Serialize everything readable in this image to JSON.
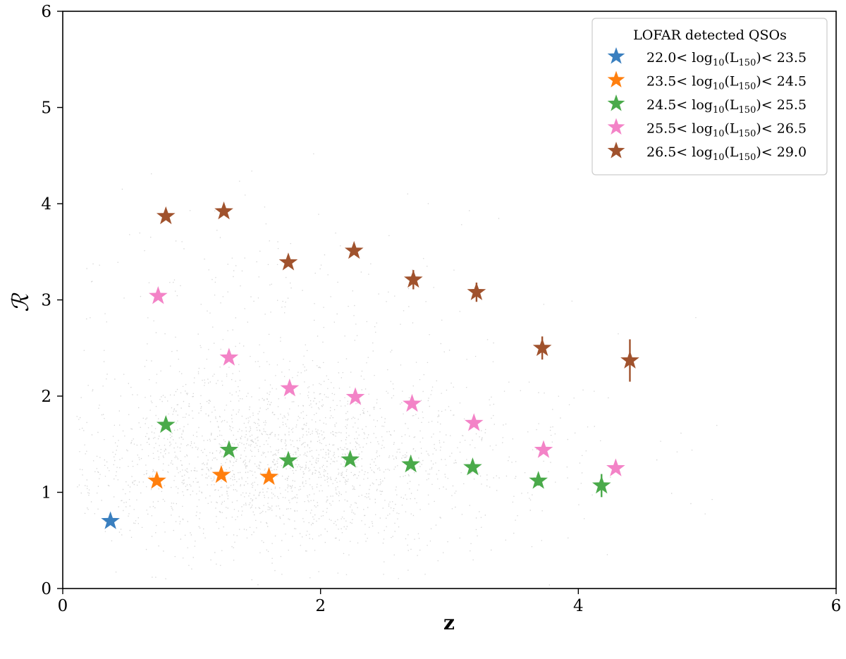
{
  "chart_data": {
    "type": "scatter",
    "xlabel": "z",
    "ylabel": "ℛ",
    "xlim": [
      0,
      6
    ],
    "ylim": [
      0,
      6
    ],
    "xticks": [
      0,
      2,
      4,
      6
    ],
    "yticks": [
      0,
      1,
      2,
      3,
      4,
      5,
      6
    ],
    "grid": false,
    "legend_placement": "top-right",
    "legend_title": "LOFAR detected QSOs",
    "background_points": {
      "description": "grey scatter of QSO population",
      "color": "#b0b0b0"
    },
    "series": [
      {
        "name": "22.0< log10(L150)< 23.5",
        "label_parts": {
          "pre": "22.0< log",
          "sub1": "10",
          "mid": "(L",
          "sub2": "150",
          "post": ")< 23.5"
        },
        "color": "#3a7fbf",
        "x": [
          0.37
        ],
        "y": [
          0.7
        ],
        "yerr": [
          0.0
        ]
      },
      {
        "name": "23.5< log10(L150)< 24.5",
        "label_parts": {
          "pre": "23.5< log",
          "sub1": "10",
          "mid": "(L",
          "sub2": "150",
          "post": ")< 24.5"
        },
        "color": "#ff7f0e",
        "x": [
          0.73,
          1.23,
          1.6
        ],
        "y": [
          1.12,
          1.18,
          1.16
        ],
        "yerr": [
          0.0,
          0.0,
          0.0
        ]
      },
      {
        "name": "24.5< log10(L150)< 25.5",
        "label_parts": {
          "pre": "24.5< log",
          "sub1": "10",
          "mid": "(L",
          "sub2": "150",
          "post": ")< 25.5"
        },
        "color": "#4aaa4a",
        "x": [
          0.8,
          1.29,
          1.75,
          2.23,
          2.7,
          3.18,
          3.69,
          4.18
        ],
        "y": [
          1.7,
          1.44,
          1.33,
          1.34,
          1.29,
          1.26,
          1.12,
          1.07
        ],
        "yerr": [
          0.0,
          0.0,
          0.0,
          0.0,
          0.0,
          0.0,
          0.05,
          0.12
        ]
      },
      {
        "name": "25.5< log10(L150)< 26.5",
        "label_parts": {
          "pre": "25.5< log",
          "sub1": "10",
          "mid": "(L",
          "sub2": "150",
          "post": ")< 26.5"
        },
        "color": "#f383c7",
        "x": [
          0.74,
          1.29,
          1.76,
          2.27,
          2.71,
          3.19,
          3.73,
          4.29
        ],
        "y": [
          3.04,
          2.4,
          2.08,
          1.99,
          1.92,
          1.72,
          1.44,
          1.25
        ],
        "yerr": [
          0.0,
          0.0,
          0.0,
          0.0,
          0.0,
          0.0,
          0.0,
          0.0
        ]
      },
      {
        "name": "26.5< log10(L150)< 29.0",
        "label_parts": {
          "pre": "26.5< log",
          "sub1": "10",
          "mid": "(L",
          "sub2": "150",
          "post": ")< 29.0"
        },
        "color": "#a0522d",
        "x": [
          0.8,
          1.25,
          1.75,
          2.26,
          2.72,
          3.21,
          3.72,
          4.4
        ],
        "y": [
          3.87,
          3.92,
          3.39,
          3.51,
          3.21,
          3.08,
          2.5,
          2.37
        ],
        "yerr": [
          0.0,
          0.0,
          0.0,
          0.0,
          0.1,
          0.1,
          0.12,
          0.22
        ]
      }
    ]
  }
}
